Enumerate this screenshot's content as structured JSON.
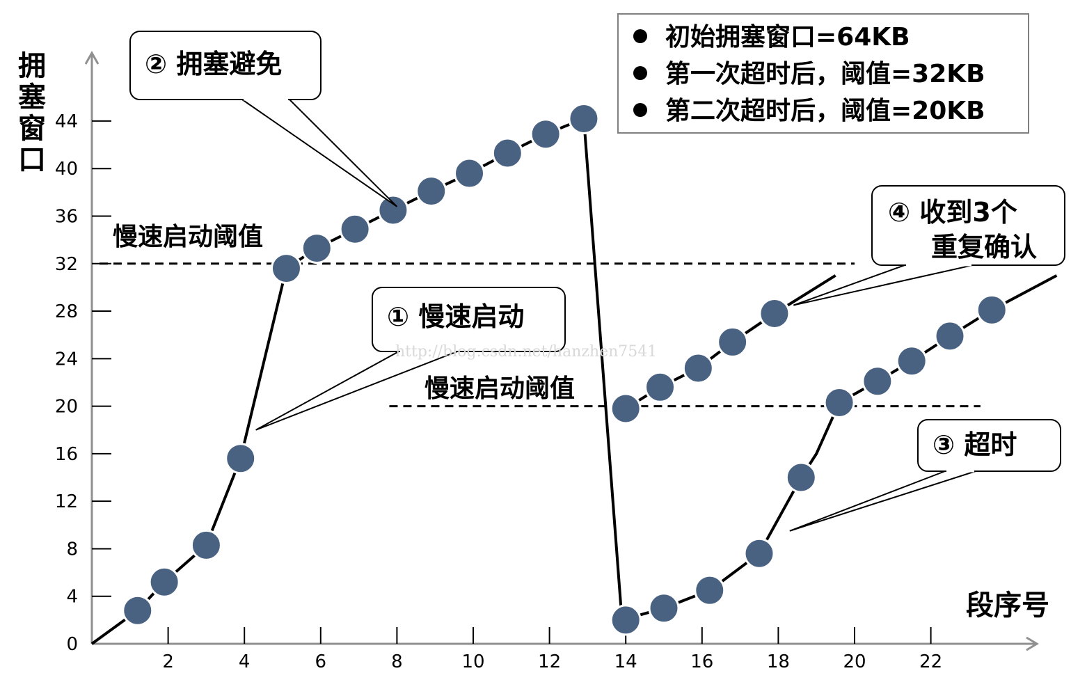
{
  "chart_data": {
    "type": "line",
    "xlabel": "段序号",
    "ylabel": "拥塞窗口",
    "x_ticks": [
      2,
      4,
      6,
      8,
      10,
      12,
      14,
      16,
      18,
      20,
      22
    ],
    "y_ticks": [
      0,
      4,
      8,
      12,
      16,
      20,
      24,
      28,
      32,
      36,
      40,
      44
    ],
    "xlim": [
      0,
      25.5
    ],
    "ylim": [
      0,
      47
    ],
    "series": [
      {
        "points": [
          [
            1.2,
            2.8
          ],
          [
            1.9,
            5.2
          ],
          [
            3.0,
            8.3
          ],
          [
            3.9,
            15.6
          ],
          [
            5.1,
            31.6
          ],
          [
            5.9,
            33.3
          ],
          [
            6.9,
            34.9
          ],
          [
            7.9,
            36.5
          ],
          [
            8.9,
            38.1
          ],
          [
            9.9,
            39.6
          ],
          [
            10.9,
            41.3
          ],
          [
            11.9,
            42.9
          ],
          [
            12.9,
            44.2
          ],
          [
            14.0,
            2.0
          ],
          [
            15.0,
            3.0
          ],
          [
            16.2,
            4.5
          ],
          [
            17.5,
            7.6
          ],
          [
            18.6,
            14.0
          ],
          [
            19.6,
            20.3
          ],
          [
            20.6,
            22.1
          ],
          [
            21.5,
            23.8
          ],
          [
            22.5,
            25.9
          ],
          [
            23.6,
            28.1
          ]
        ],
        "segments": [
          [
            [
              0,
              0
            ],
            [
              1.2,
              2.8
            ],
            [
              1.9,
              5.2
            ],
            [
              3.0,
              8.3
            ],
            [
              3.9,
              15.6
            ],
            [
              5.1,
              31.6
            ],
            [
              5.9,
              33.3
            ],
            [
              6.9,
              34.9
            ],
            [
              7.9,
              36.5
            ],
            [
              8.9,
              38.1
            ],
            [
              9.9,
              39.6
            ],
            [
              10.9,
              41.3
            ],
            [
              11.9,
              42.9
            ],
            [
              12.9,
              44.2
            ]
          ],
          [
            [
              12.9,
              44.2
            ],
            [
              13.9,
              2.0
            ]
          ],
          [
            [
              13.9,
              2.0
            ],
            [
              15.0,
              3.0
            ],
            [
              16.2,
              4.5
            ],
            [
              16.5,
              5.2
            ],
            [
              17.5,
              7.6
            ],
            [
              18.6,
              14.0
            ],
            [
              19.0,
              16.0
            ],
            [
              19.6,
              20.3
            ],
            [
              20.6,
              22.1
            ],
            [
              21.5,
              23.8
            ],
            [
              22.5,
              25.9
            ],
            [
              23.6,
              28.1
            ],
            [
              25.3,
              31.0
            ]
          ]
        ]
      },
      {
        "points": [
          [
            14.0,
            19.8
          ],
          [
            14.9,
            21.6
          ],
          [
            15.9,
            23.2
          ],
          [
            16.8,
            25.4
          ],
          [
            17.9,
            27.8
          ]
        ],
        "segments": [
          [
            [
              14.0,
              19.8
            ],
            [
              14.9,
              21.6
            ],
            [
              15.9,
              23.2
            ],
            [
              16.8,
              25.4
            ],
            [
              17.9,
              27.8
            ],
            [
              19.5,
              31.0
            ]
          ]
        ]
      }
    ],
    "thresholds": [
      {
        "value": 32,
        "x_from": 0.2,
        "x_to": 20.0,
        "label": "慢速启动阈值"
      },
      {
        "value": 20,
        "x_from": 7.8,
        "x_to": 23.3,
        "label": "慢速启动阈值"
      }
    ],
    "callouts": [
      {
        "lines": [
          "② 拥塞避免"
        ],
        "target": [
          8.0,
          36.8
        ]
      },
      {
        "lines": [
          "① 慢速启动"
        ],
        "target": [
          4.3,
          18.0
        ]
      },
      {
        "lines": [
          "④ 收到3个",
          "重复确认"
        ],
        "target": [
          18.4,
          28.5
        ]
      },
      {
        "lines": [
          "③ 超时"
        ],
        "target": [
          18.3,
          9.5
        ]
      }
    ],
    "legend": {
      "position": "top-right",
      "items": [
        "初始拥塞窗口=64KB",
        "第一次超时后，阈值=32KB",
        "第二次超时后，阈值=20KB"
      ]
    }
  },
  "watermark": "http://blog.csdn.net/hanzhen7541",
  "colors": {
    "marker": "#4a6282",
    "line": "#000000",
    "axis": "#909090"
  }
}
